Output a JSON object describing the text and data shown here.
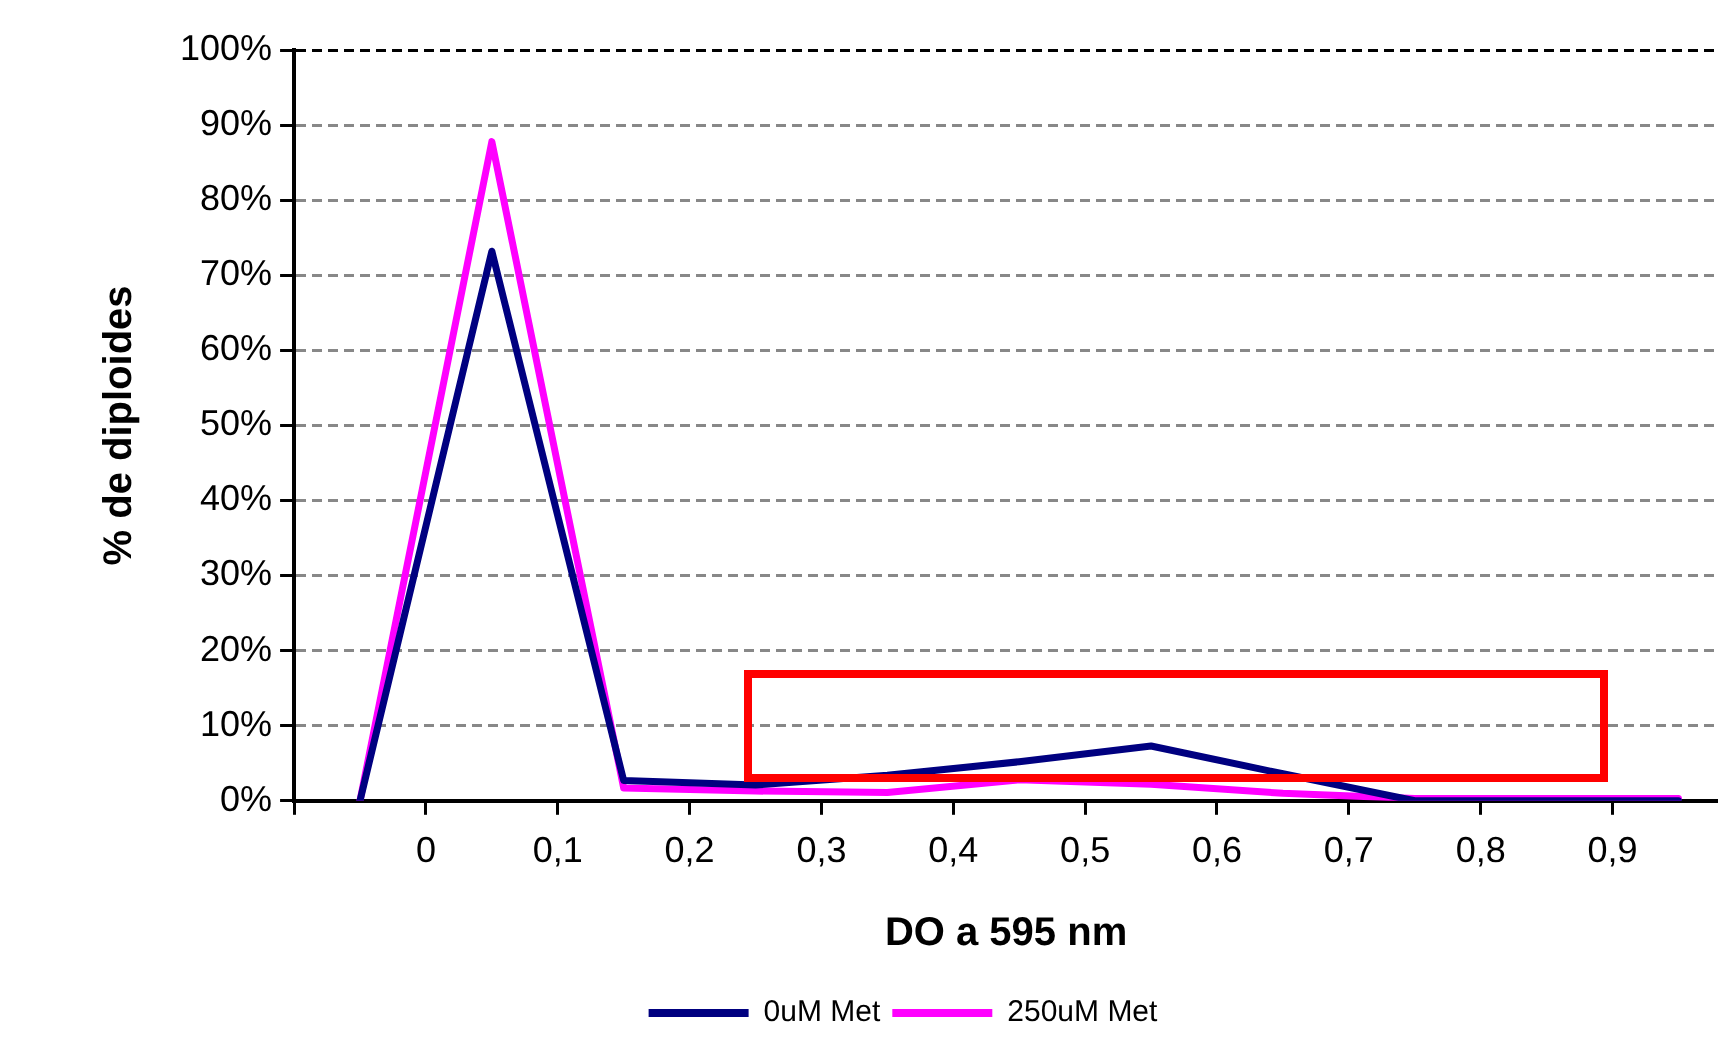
{
  "chart_data": {
    "type": "line",
    "xlabel": "DO a 595 nm",
    "ylabel": "% de diploides",
    "x": [
      -0.05,
      0.05,
      0.15,
      0.25,
      0.35,
      0.45,
      0.55,
      0.65,
      0.75,
      0.85,
      0.95
    ],
    "series": [
      {
        "name": "0uM Met",
        "color": "#000080",
        "values": [
          0,
          73.2,
          2.7,
          2.1,
          3.4,
          5.2,
          7.3,
          3.6,
          0,
          0,
          0
        ]
      },
      {
        "name": "250uM Met",
        "color": "#ff00ff",
        "values": [
          0,
          87.8,
          1.7,
          1.3,
          1.1,
          2.8,
          2.2,
          1.0,
          0.3,
          0.3,
          0.3
        ]
      }
    ],
    "xlim": [
      -0.1,
      0.98
    ],
    "xticks": [
      {
        "value": -0.1,
        "label": null
      },
      0,
      {
        "value": 0.1,
        "label": "0,1"
      },
      {
        "value": 0.2,
        "label": "0,2"
      },
      {
        "value": 0.3,
        "label": "0,3"
      },
      {
        "value": 0.4,
        "label": "0,4"
      },
      {
        "value": 0.5,
        "label": "0,5"
      },
      {
        "value": 0.6,
        "label": "0,6"
      },
      {
        "value": 0.7,
        "label": "0,7"
      },
      {
        "value": 0.8,
        "label": "0,8"
      },
      {
        "value": 0.9,
        "label": "0,9"
      }
    ],
    "ylim": [
      0,
      100
    ],
    "yticks": [
      {
        "value": 0,
        "label": "0%"
      },
      {
        "value": 10,
        "label": "10%"
      },
      {
        "value": 20,
        "label": "20%"
      },
      {
        "value": 30,
        "label": "30%"
      },
      {
        "value": 40,
        "label": "40%"
      },
      {
        "value": 50,
        "label": "50%"
      },
      {
        "value": 60,
        "label": "60%"
      },
      {
        "value": 70,
        "label": "70%"
      },
      {
        "value": 80,
        "label": "80%"
      },
      {
        "value": 90,
        "label": "90%"
      },
      {
        "value": 100,
        "label": "100%"
      }
    ],
    "grid": "y",
    "legend": "bottom",
    "marker": "none",
    "line_style": "solid"
  }
}
